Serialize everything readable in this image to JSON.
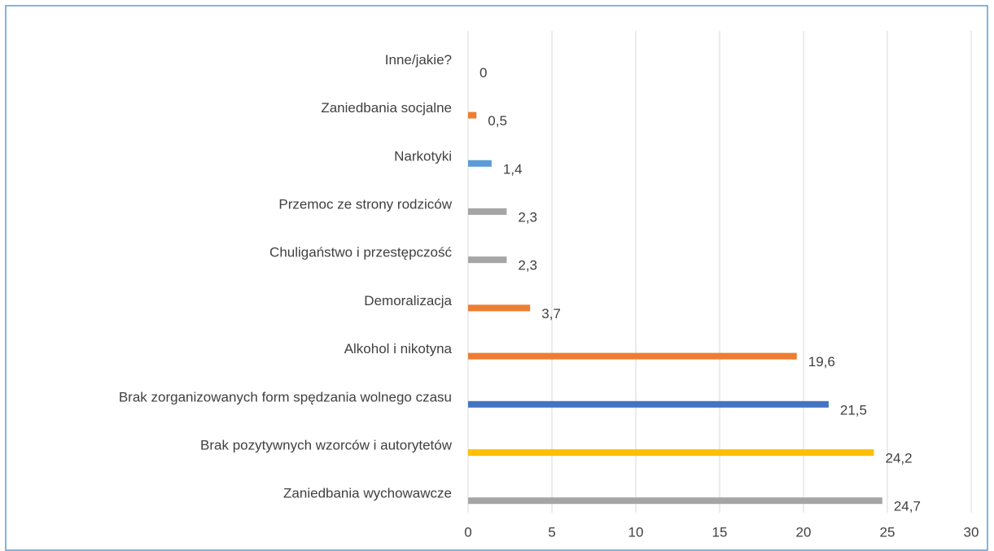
{
  "chart_data": {
    "type": "bar",
    "categories": [
      "Inne/jakie?",
      "Zaniedbania socjalne",
      "Narkotyki",
      "Przemoc ze strony rodziców",
      "Chuligaństwo i przestępczość",
      "Demoralizacja",
      "Alkohol i nikotyna",
      "Brak zorganizowanych form spędzania wolnego czasu",
      "Brak pozytywnych wzorców i autorytetów",
      "Zaniedbania wychowawcze"
    ],
    "values": [
      0,
      0.5,
      1.4,
      2.3,
      2.3,
      3.7,
      19.6,
      21.5,
      24.2,
      24.7
    ],
    "value_labels": [
      "0",
      "0,5",
      "1,4",
      "2,3",
      "2,3",
      "3,7",
      "19,6",
      "21,5",
      "24,2",
      "24,7"
    ],
    "colors": [
      "#a5a5a5",
      "#ed7d31",
      "#5b9bd5",
      "#a5a5a5",
      "#a5a5a5",
      "#ed7d31",
      "#ed7d31",
      "#4472c4",
      "#ffc000",
      "#a5a5a5"
    ],
    "xlim": [
      0,
      30
    ],
    "xticks": [
      0,
      5,
      10,
      15,
      20,
      25,
      30
    ],
    "grid": true
  }
}
